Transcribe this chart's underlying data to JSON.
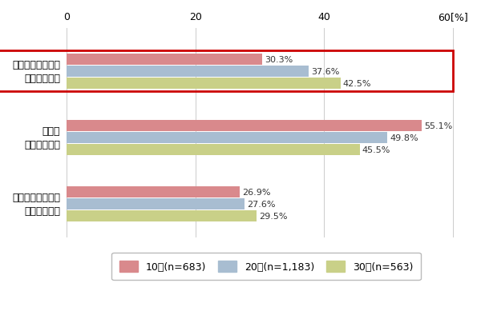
{
  "categories": [
    "どのアカウントも\nバレたくない",
    "一部は\nバレてもいい",
    "どのアカウントも\nバレてもいい"
  ],
  "series": [
    {
      "label": "10代(n=683)",
      "color": "#d9898c",
      "values": [
        30.3,
        55.1,
        26.9
      ]
    },
    {
      "label": "20代(n=1,183)",
      "color": "#a8bdd1",
      "values": [
        37.6,
        49.8,
        27.6
      ]
    },
    {
      "label": "30代(n=563)",
      "color": "#c9d088",
      "values": [
        42.5,
        45.5,
        29.5
      ]
    }
  ],
  "xlim": [
    0,
    62
  ],
  "xticks": [
    0,
    20,
    40,
    60
  ],
  "xlabel_suffix": "[%]",
  "highlight_color": "#cc0000",
  "bar_height": 0.18,
  "label_fontsize": 9,
  "tick_fontsize": 9,
  "legend_fontsize": 9,
  "value_fontsize": 8,
  "bg_color": "#ffffff",
  "text_color": "#333333"
}
